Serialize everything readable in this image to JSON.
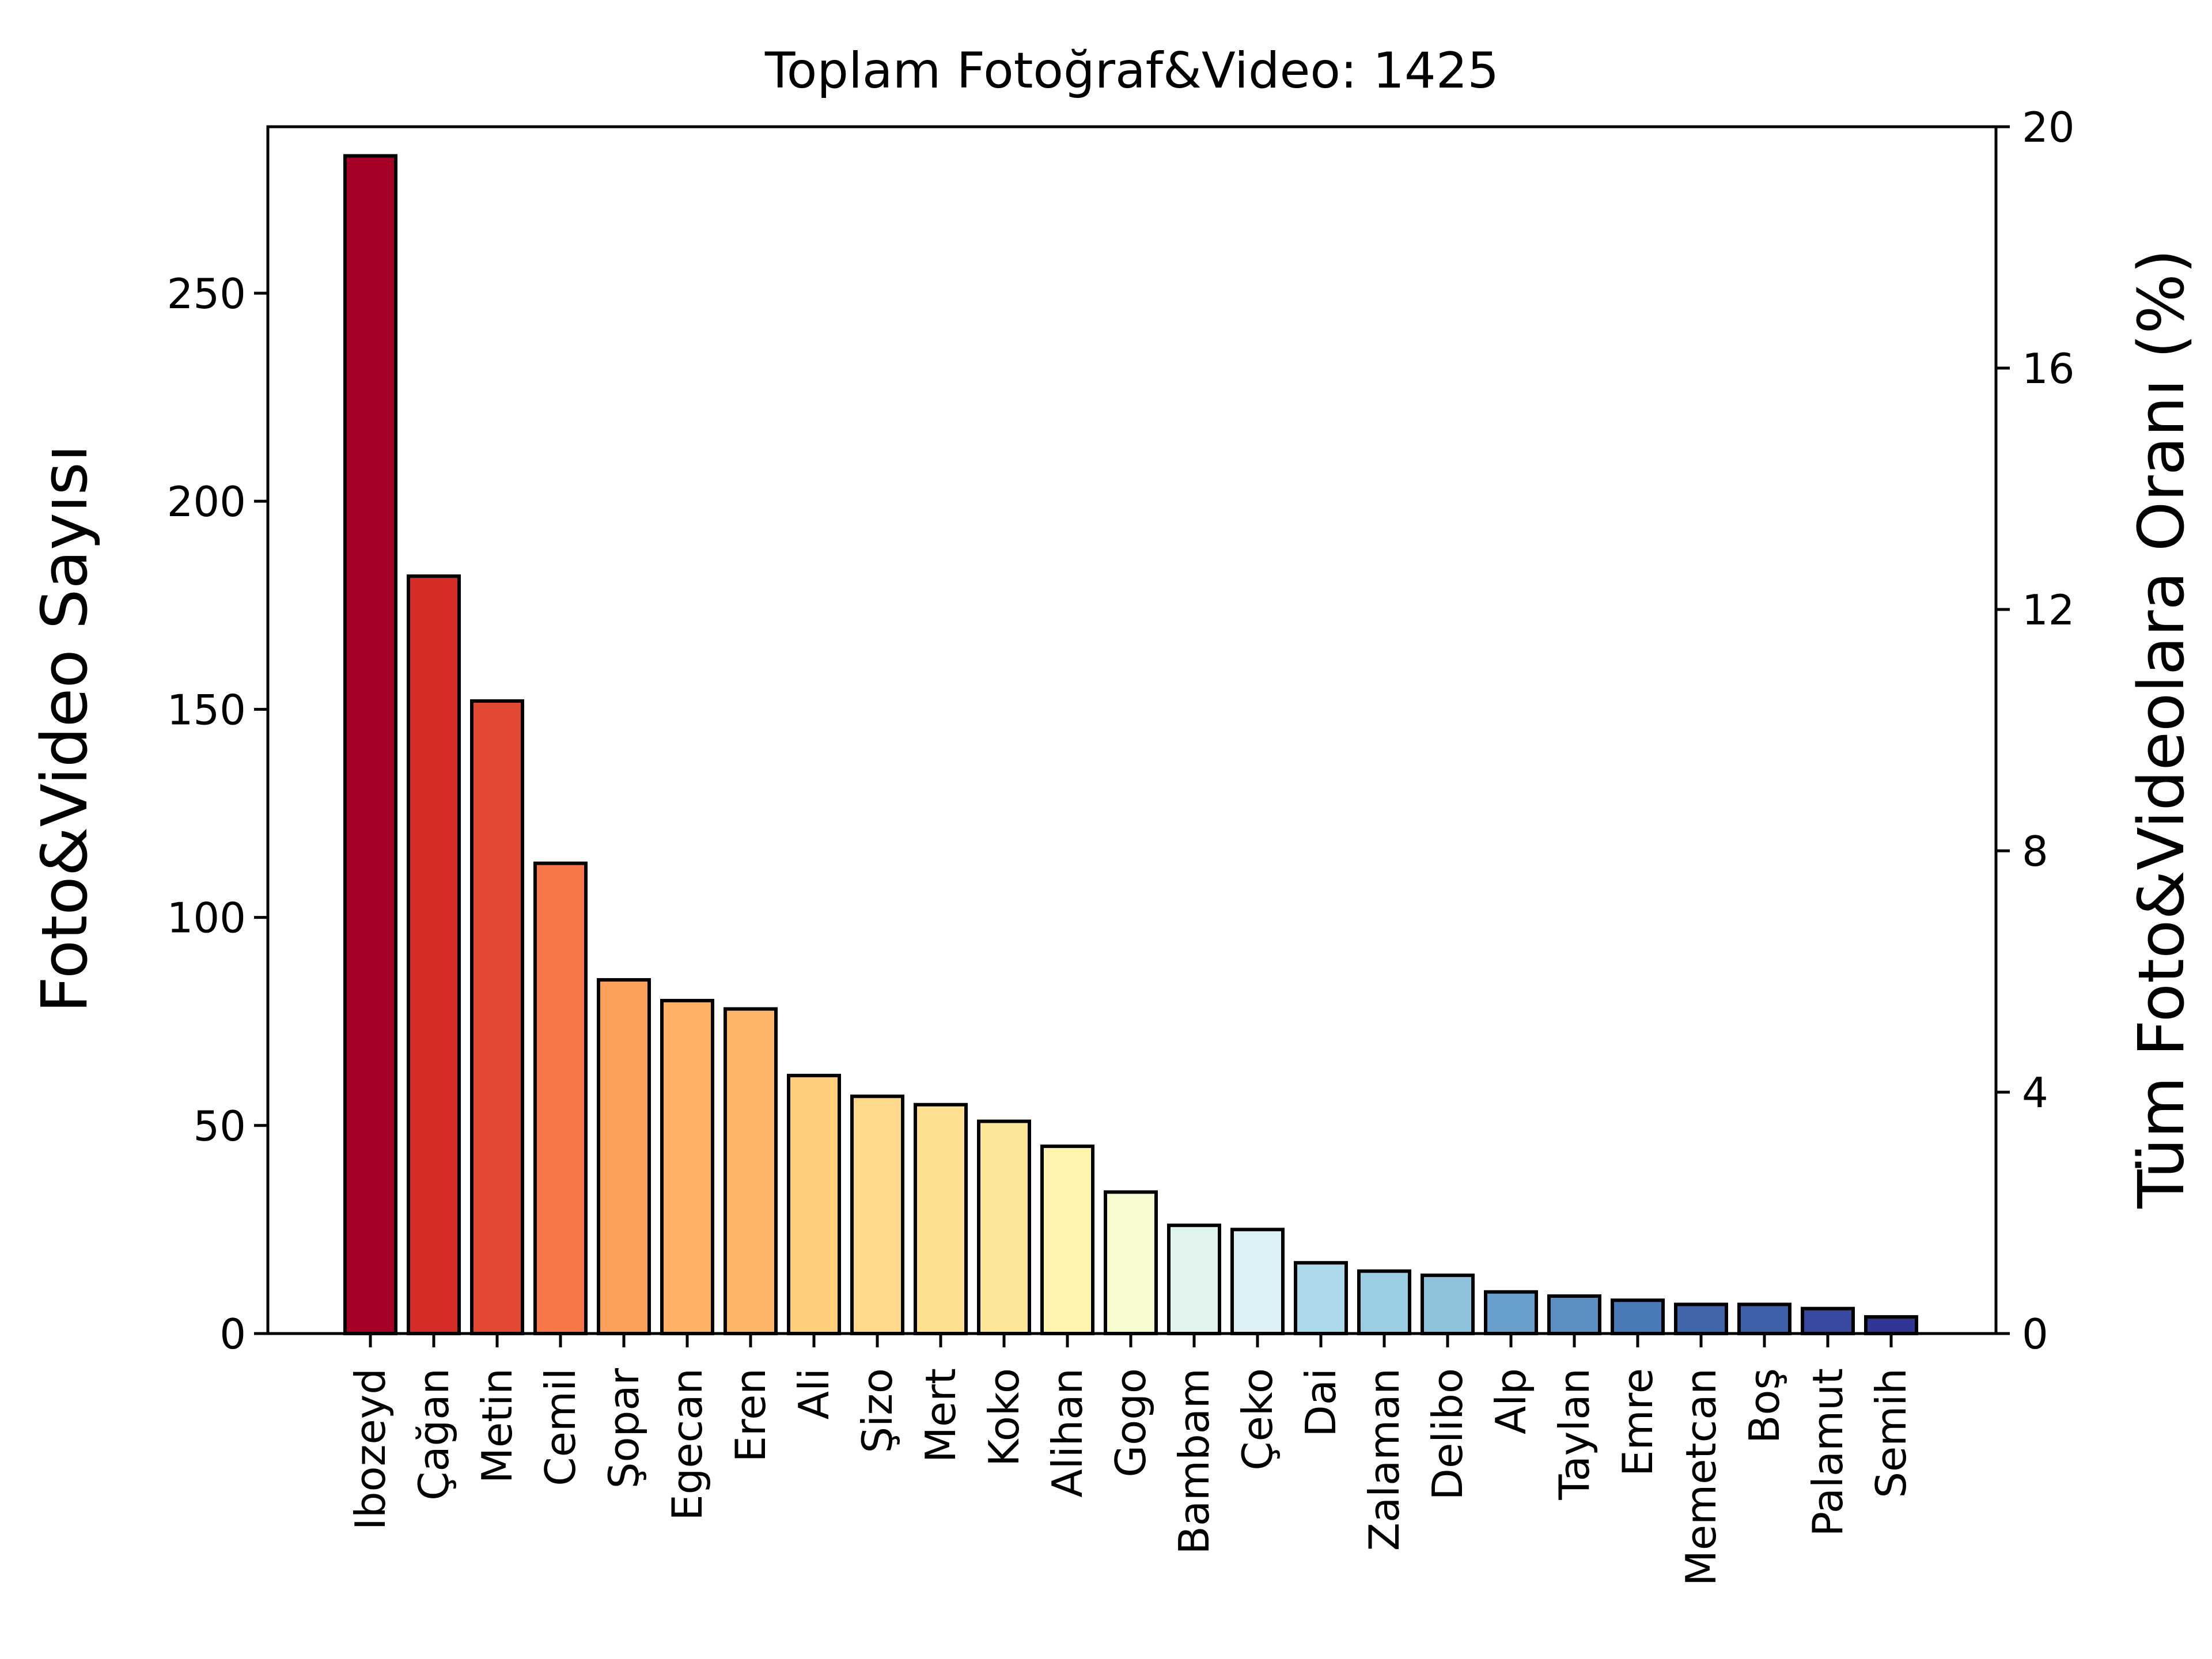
{
  "chart_data": {
    "type": "bar",
    "title": "Toplam Fotoğraf&Video: 1425",
    "ylabel": "Foto&Video Sayısı",
    "ylabel_right": "Tüm Foto&Videolara Oranı (%)",
    "total": 1425,
    "ylim": [
      0,
      290
    ],
    "yticks": [
      0,
      50,
      100,
      150,
      200,
      250
    ],
    "ylim_right": [
      0,
      20
    ],
    "yticks_right": [
      0,
      4,
      8,
      12,
      16,
      20
    ],
    "grid": false,
    "legend": "none",
    "colormap": "RdYlBu",
    "categories": [
      "Ibozeyd",
      "Çağan",
      "Metin",
      "Cemil",
      "Şopar",
      "Egecan",
      "Eren",
      "Ali",
      "Şizo",
      "Mert",
      "Koko",
      "Alihan",
      "Gogo",
      "Bambam",
      "Çeko",
      "Dai",
      "Zalaman",
      "Delibo",
      "Alp",
      "Taylan",
      "Emre",
      "Memetcan",
      "Boş",
      "Palamut",
      "Semih"
    ],
    "values": [
      283,
      182,
      152,
      113,
      85,
      80,
      78,
      62,
      57,
      55,
      51,
      45,
      34,
      26,
      25,
      17,
      15,
      14,
      10,
      9,
      8,
      7,
      7,
      6,
      4
    ],
    "colors": [
      "#a50026",
      "#d42d27",
      "#e34a33",
      "#f57748",
      "#fba05b",
      "#fdb163",
      "#fdb567",
      "#fece7c",
      "#fed98b",
      "#fee090",
      "#fee699",
      "#fff5ae",
      "#f7fbcf",
      "#e0f3ee",
      "#ddf0f6",
      "#abd9e9",
      "#9bcee3",
      "#8fc3dd",
      "#699fcb",
      "#5b8ec3",
      "#4a7ab8",
      "#4065ab",
      "#3e60a9",
      "#3a49a0",
      "#313695"
    ]
  }
}
